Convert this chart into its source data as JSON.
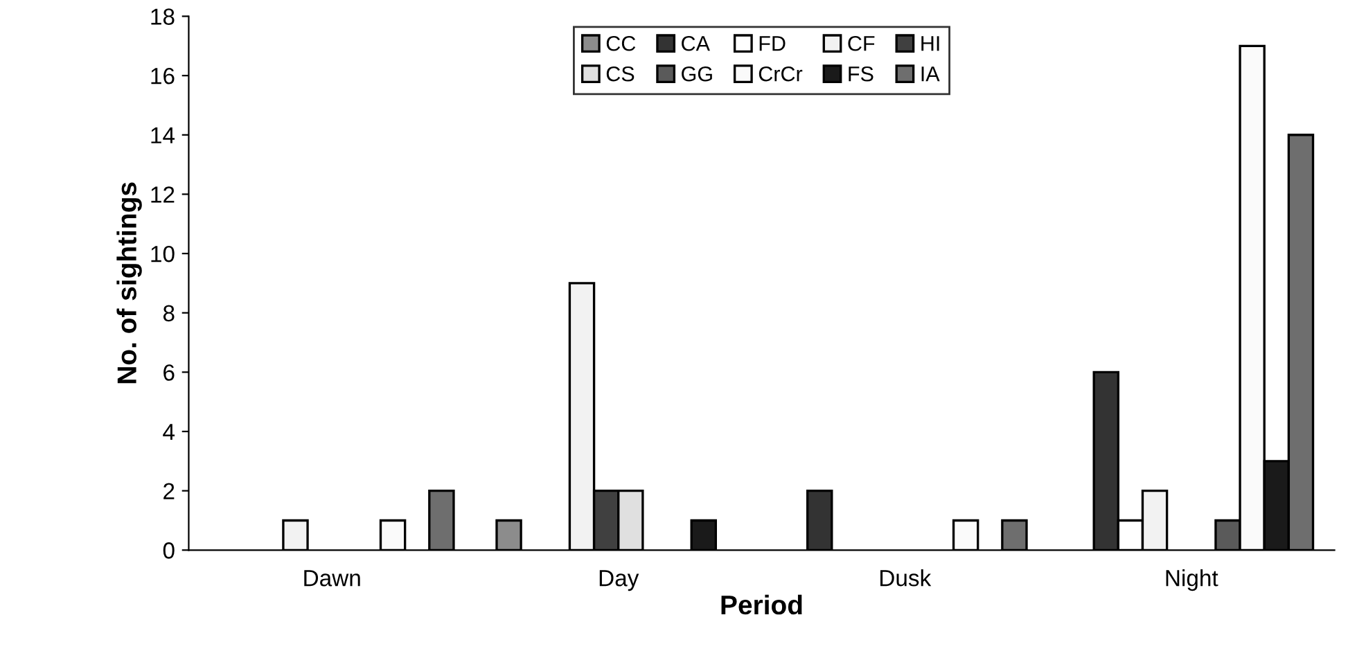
{
  "chart_data": {
    "type": "bar",
    "xlabel": "Period",
    "ylabel": "No. of sightings",
    "categories": [
      "Dawn",
      "Day",
      "Dusk",
      "Night"
    ],
    "series": [
      {
        "name": "CC",
        "color": "#8c8c8c",
        "values": [
          0,
          1,
          0,
          0
        ]
      },
      {
        "name": "CA",
        "color": "#333333",
        "values": [
          0,
          0,
          2,
          6
        ]
      },
      {
        "name": "FD",
        "color": "#ffffff",
        "values": [
          0,
          0,
          0,
          1
        ]
      },
      {
        "name": "CF",
        "color": "#f2f2f2",
        "values": [
          1,
          9,
          0,
          2
        ]
      },
      {
        "name": "HI",
        "color": "#404040",
        "values": [
          0,
          2,
          0,
          0
        ]
      },
      {
        "name": "CS",
        "color": "#e0e0e0",
        "values": [
          0,
          2,
          0,
          0
        ]
      },
      {
        "name": "GG",
        "color": "#5a5a5a",
        "values": [
          0,
          0,
          0,
          1
        ]
      },
      {
        "name": "CrCr",
        "color": "#fafafa",
        "values": [
          1,
          0,
          1,
          17
        ]
      },
      {
        "name": "FS",
        "color": "#1a1a1a",
        "values": [
          0,
          1,
          0,
          3
        ]
      },
      {
        "name": "IA",
        "color": "#6e6e6e",
        "values": [
          2,
          0,
          1,
          14
        ]
      }
    ],
    "ylim": [
      0,
      18
    ],
    "yticks": [
      0,
      2,
      4,
      6,
      8,
      10,
      12,
      14,
      16,
      18
    ],
    "grid": false,
    "legend": "top"
  }
}
